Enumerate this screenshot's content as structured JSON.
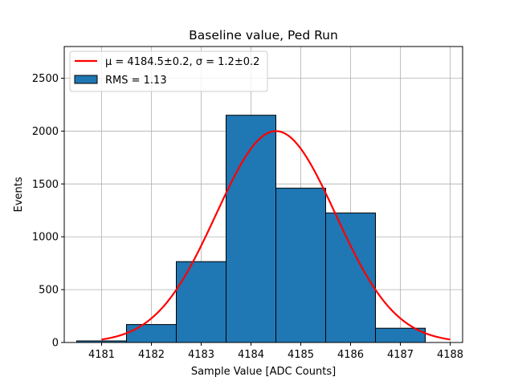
{
  "chart_data": {
    "type": "histogram",
    "title": "Baseline value, Ped Run",
    "xlabel": "Sample Value [ADC Counts]",
    "ylabel": "Events",
    "xlim": [
      4180.25,
      4188.25
    ],
    "ylim": [
      0,
      2800
    ],
    "xticks": [
      4181,
      4182,
      4183,
      4184,
      4185,
      4186,
      4187,
      4188
    ],
    "yticks": [
      0,
      500,
      1000,
      1500,
      2000,
      2500
    ],
    "grid": true,
    "bins": [
      {
        "lo": 4180.5,
        "hi": 4181.5,
        "value": 15
      },
      {
        "lo": 4181.5,
        "hi": 4182.5,
        "value": 170
      },
      {
        "lo": 4182.5,
        "hi": 4183.5,
        "value": 765
      },
      {
        "lo": 4183.5,
        "hi": 4184.5,
        "value": 2150
      },
      {
        "lo": 4184.5,
        "hi": 4185.5,
        "value": 1460
      },
      {
        "lo": 4185.5,
        "hi": 4186.5,
        "value": 1225
      },
      {
        "lo": 4186.5,
        "hi": 4187.5,
        "value": 135
      }
    ],
    "bar_color": "#1f77b4",
    "fit": {
      "type": "gaussian",
      "mu": 4184.5,
      "sigma": 1.2,
      "amplitude": 2000,
      "x_range": [
        4181,
        4188
      ],
      "color": "#ff0000"
    },
    "legend": {
      "position": "top-left",
      "entries": [
        {
          "label": "μ = 4184.5±0.2, σ = 1.2±0.2",
          "kind": "line",
          "color": "#ff0000"
        },
        {
          "label": "RMS = 1.13",
          "kind": "patch",
          "color": "#1f77b4"
        }
      ]
    }
  }
}
